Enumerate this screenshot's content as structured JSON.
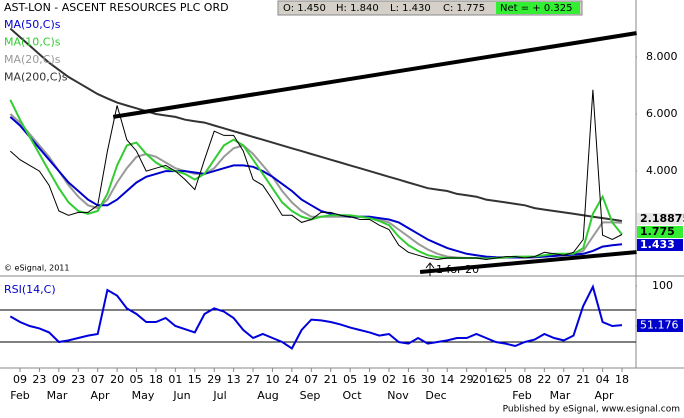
{
  "chart_data": {
    "type": "line",
    "title": "AST-LON - ASCENT RESOURCES PLC ORD",
    "header": [
      "O: 1.450",
      "H: 1.840",
      "L: 1.430",
      "C: 1.775"
    ],
    "net": "Net = + 0.325",
    "categories": [
      null,
      "09",
      null,
      "23",
      null,
      "09",
      null,
      "23",
      null,
      "07",
      null,
      "20",
      null,
      "05",
      null,
      "18",
      null,
      "01",
      null,
      "15",
      null,
      "29",
      null,
      "13",
      null,
      "27",
      null,
      "10",
      null,
      "24",
      null,
      "07",
      null,
      "21",
      null,
      "05",
      null,
      "19",
      null,
      "02",
      null,
      "16",
      null,
      "30",
      null,
      "14",
      null,
      "29",
      null,
      "2016",
      null,
      "25",
      null,
      "08",
      null,
      "22",
      null,
      "07",
      null,
      "21",
      null,
      "04",
      null,
      "18"
    ],
    "month_labels": [
      "Feb",
      "Mar",
      "Apr",
      "May",
      "Jun",
      "Jul",
      "Aug",
      "Sep",
      "Oct",
      "Nov",
      "Dec",
      "Feb",
      "Mar",
      "Apr"
    ],
    "values": [
      4.7,
      4.4,
      4.2,
      4.0,
      3.5,
      2.6,
      2.45,
      2.55,
      2.55,
      2.8,
      4.7,
      6.3,
      5.1,
      4.7,
      4.0,
      4.1,
      4.2,
      4.0,
      3.7,
      3.35,
      4.4,
      5.4,
      5.25,
      5.25,
      4.7,
      3.7,
      3.5,
      3.0,
      2.45,
      2.45,
      2.2,
      2.3,
      2.55,
      2.55,
      2.45,
      2.4,
      2.3,
      2.3,
      2.1,
      1.95,
      1.4,
      1.15,
      1.05,
      0.95,
      0.9,
      0.95,
      0.95,
      0.95,
      0.95,
      0.9,
      0.95,
      1.0,
      1.0,
      0.95,
      1.0,
      1.15,
      1.1,
      1.05,
      1.15,
      1.6,
      6.85,
      1.75,
      1.6,
      1.775
    ],
    "color": "#000000",
    "series": [
      {
        "name": "MA(50,C)s",
        "color": "#0000cc",
        "values": [
          5.9,
          5.6,
          5.2,
          4.8,
          4.4,
          4.0,
          3.6,
          3.3,
          3.0,
          2.8,
          2.8,
          3.0,
          3.3,
          3.6,
          3.8,
          3.9,
          4.0,
          4.0,
          4.0,
          3.95,
          3.9,
          4.0,
          4.1,
          4.2,
          4.2,
          4.15,
          4.0,
          3.8,
          3.55,
          3.3,
          3.0,
          2.8,
          2.6,
          2.5,
          2.45,
          2.4,
          2.4,
          2.4,
          2.35,
          2.3,
          2.2,
          2.0,
          1.8,
          1.6,
          1.45,
          1.3,
          1.2,
          1.1,
          1.05,
          1.0,
          0.98,
          0.97,
          0.97,
          0.97,
          0.98,
          1.0,
          1.02,
          1.05,
          1.07,
          1.1,
          1.2,
          1.35,
          1.4,
          1.433
        ]
      },
      {
        "name": "MA(10,C)s",
        "color": "#33cc33",
        "values": [
          6.5,
          5.8,
          5.2,
          4.6,
          4.0,
          3.4,
          2.9,
          2.6,
          2.5,
          2.6,
          3.2,
          4.2,
          4.9,
          5.0,
          4.6,
          4.3,
          4.1,
          4.0,
          3.9,
          3.7,
          3.9,
          4.4,
          4.9,
          5.1,
          4.9,
          4.4,
          3.9,
          3.4,
          2.9,
          2.6,
          2.4,
          2.3,
          2.4,
          2.45,
          2.45,
          2.45,
          2.4,
          2.35,
          2.25,
          2.1,
          1.7,
          1.4,
          1.2,
          1.05,
          0.98,
          0.95,
          0.95,
          0.95,
          0.95,
          0.93,
          0.95,
          0.97,
          1.0,
          1.0,
          1.0,
          1.05,
          1.1,
          1.1,
          1.1,
          1.3,
          2.5,
          3.1,
          2.2,
          1.775
        ]
      },
      {
        "name": "MA(20,C)s",
        "color": "#999999",
        "values": [
          6.0,
          5.7,
          5.3,
          4.9,
          4.5,
          4.0,
          3.5,
          3.1,
          2.8,
          2.7,
          3.0,
          3.6,
          4.1,
          4.5,
          4.6,
          4.5,
          4.3,
          4.1,
          4.0,
          3.9,
          3.9,
          4.1,
          4.5,
          4.8,
          4.9,
          4.6,
          4.2,
          3.8,
          3.3,
          2.9,
          2.6,
          2.4,
          2.4,
          2.4,
          2.4,
          2.4,
          2.4,
          2.4,
          2.3,
          2.2,
          1.95,
          1.7,
          1.45,
          1.25,
          1.1,
          1.0,
          0.97,
          0.95,
          0.95,
          0.95,
          0.95,
          0.96,
          0.98,
          0.99,
          1.0,
          1.02,
          1.05,
          1.08,
          1.1,
          1.2,
          1.7,
          2.2,
          2.2,
          2.18875
        ]
      },
      {
        "name": "MA(200,C)s",
        "color": "#333333",
        "values": [
          9.0,
          8.7,
          8.4,
          8.1,
          7.8,
          7.55,
          7.3,
          7.1,
          6.9,
          6.7,
          6.55,
          6.4,
          6.3,
          6.2,
          6.1,
          6.0,
          5.95,
          5.9,
          5.8,
          5.75,
          5.7,
          5.6,
          5.5,
          5.4,
          5.3,
          5.2,
          5.1,
          5.0,
          4.9,
          4.8,
          4.7,
          4.6,
          4.5,
          4.4,
          4.3,
          4.2,
          4.1,
          4.0,
          3.9,
          3.8,
          3.7,
          3.6,
          3.5,
          3.4,
          3.35,
          3.3,
          3.2,
          3.15,
          3.1,
          3.0,
          2.95,
          2.9,
          2.85,
          2.8,
          2.7,
          2.65,
          2.6,
          2.55,
          2.5,
          2.45,
          2.4,
          2.35,
          2.3,
          2.25
        ]
      }
    ],
    "ylim": [
      0.46,
      10.0
    ],
    "yticks": [
      {
        "value": 8,
        "label": "8.000"
      },
      {
        "value": 6,
        "label": "6.000"
      },
      {
        "value": 4,
        "label": "4.000"
      }
    ],
    "trendlines": [
      {
        "x": [
          10.6,
          64.5
        ],
        "values": [
          5.9,
          8.84
        ]
      },
      {
        "x": [
          42.2,
          64.5
        ],
        "values": [
          0.46,
          1.16
        ]
      }
    ],
    "annotation": "1 for 20",
    "watermark": "© eSignal, 2011",
    "rsi": {
      "title": "RSI(14,C)",
      "color": "#0000dd",
      "values": [
        62,
        55,
        50,
        47,
        42,
        30,
        32,
        35,
        38,
        40,
        95,
        88,
        72,
        65,
        55,
        55,
        60,
        50,
        46,
        42,
        65,
        72,
        68,
        60,
        45,
        35,
        40,
        35,
        30,
        22,
        45,
        58,
        57,
        55,
        52,
        48,
        45,
        42,
        38,
        40,
        30,
        28,
        35,
        28,
        30,
        32,
        35,
        35,
        40,
        35,
        30,
        28,
        25,
        30,
        33,
        40,
        35,
        32,
        38,
        75,
        99,
        55,
        50,
        51.176
      ],
      "ylim": [
        -2.5,
        107.5
      ],
      "yticks": [
        100,
        50
      ],
      "levels": [
        70,
        30
      ]
    },
    "footer": "Published by eSignal, www.esignal.com"
  }
}
